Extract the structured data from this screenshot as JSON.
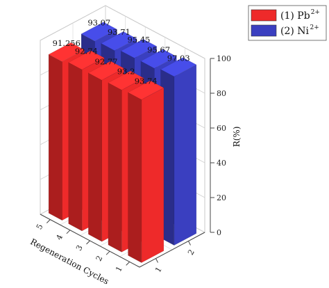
{
  "chart_data": {
    "type": "bar",
    "subtype": "3d-bar",
    "title": "",
    "xlabel": "",
    "ylabel": "Regeneration Cycles",
    "zlabel": "R(%)",
    "zlim": [
      0,
      100
    ],
    "z_ticks": [
      "0",
      "20",
      "40",
      "60",
      "80",
      "100"
    ],
    "cycle_ticks": [
      "5",
      "4",
      "3",
      "2",
      "1"
    ],
    "ion_ticks": [
      "1",
      "2"
    ],
    "grid": true,
    "legend_position": "top-right",
    "series": [
      {
        "index_label": "(1) Pb",
        "superscript": "2+",
        "color": "#ee2a2a",
        "cycles": [
          "5",
          "4",
          "3",
          "2",
          "1"
        ],
        "values": [
          91.256,
          92.74,
          92.77,
          93.2,
          93.74
        ],
        "labels": [
          "91.256",
          "92.74",
          "92.77",
          "93.2",
          "93.74"
        ]
      },
      {
        "index_label": "(2) Ni",
        "superscript": "2+",
        "color": "#3a3fc0",
        "cycles": [
          "5",
          "4",
          "3",
          "2",
          "1"
        ],
        "values": [
          93.07,
          93.71,
          95.45,
          95.67,
          97.03
        ],
        "labels": [
          "93.07",
          "93.71",
          "95.45",
          "95.67",
          "97.03"
        ]
      }
    ]
  }
}
